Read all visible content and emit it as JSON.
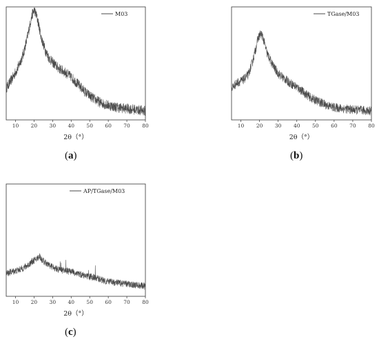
{
  "chart_data": [
    {
      "type": "line",
      "panel_label": "a",
      "xlabel": "2θ（°）",
      "xlim": [
        5,
        80
      ],
      "xticks": [
        10,
        20,
        30,
        40,
        50,
        60,
        70,
        80
      ],
      "ylabel": "",
      "yticks_shown": false,
      "legend": "top-right",
      "series": [
        {
          "name": "M03",
          "color": "#4a4a4a",
          "noise": 0.045,
          "x": [
            5,
            8,
            11,
            14,
            16,
            18,
            19,
            20,
            21,
            22,
            23,
            24,
            26,
            28,
            30,
            33,
            36,
            40,
            44,
            48,
            52,
            56,
            60,
            65,
            70,
            75,
            80
          ],
          "y": [
            0.28,
            0.36,
            0.45,
            0.57,
            0.7,
            0.86,
            0.93,
            0.97,
            0.94,
            0.88,
            0.8,
            0.72,
            0.62,
            0.55,
            0.51,
            0.46,
            0.43,
            0.38,
            0.31,
            0.24,
            0.19,
            0.15,
            0.13,
            0.11,
            0.1,
            0.09,
            0.08
          ]
        }
      ]
    },
    {
      "type": "line",
      "panel_label": "b",
      "xlabel": "2θ（°）",
      "xlim": [
        5,
        80
      ],
      "xticks": [
        10,
        20,
        30,
        40,
        50,
        60,
        70,
        80
      ],
      "ylabel": "",
      "yticks_shown": false,
      "legend": "top-right",
      "series": [
        {
          "name": "TGase/M03",
          "color": "#4a4a4a",
          "noise": 0.04,
          "x": [
            5,
            8,
            11,
            14,
            16,
            18,
            19,
            20,
            21,
            22,
            23,
            24,
            26,
            28,
            30,
            33,
            36,
            40,
            44,
            48,
            52,
            56,
            60,
            65,
            70,
            75,
            80
          ],
          "y": [
            0.28,
            0.33,
            0.35,
            0.4,
            0.5,
            0.63,
            0.71,
            0.75,
            0.76,
            0.72,
            0.66,
            0.59,
            0.52,
            0.46,
            0.41,
            0.37,
            0.33,
            0.29,
            0.24,
            0.19,
            0.16,
            0.13,
            0.11,
            0.1,
            0.09,
            0.085,
            0.08
          ]
        }
      ]
    },
    {
      "type": "line",
      "panel_label": "c",
      "xlabel": "2θ（°）",
      "xlim": [
        5,
        80
      ],
      "xticks": [
        10,
        20,
        30,
        40,
        50,
        60,
        70,
        80
      ],
      "ylabel": "",
      "yticks_shown": false,
      "legend": "top-right",
      "series": [
        {
          "name": "AP/TGase/M03",
          "color": "#4a4a4a",
          "noise": 0.03,
          "x": [
            5,
            8,
            11,
            14,
            17,
            19,
            21,
            22,
            23,
            24,
            26,
            28,
            30,
            33,
            36,
            40,
            44,
            48,
            52,
            56,
            60,
            65,
            70,
            75,
            80
          ],
          "y": [
            0.2,
            0.22,
            0.23,
            0.25,
            0.28,
            0.31,
            0.33,
            0.34,
            0.36,
            0.33,
            0.3,
            0.28,
            0.26,
            0.24,
            0.23,
            0.22,
            0.2,
            0.18,
            0.17,
            0.15,
            0.13,
            0.12,
            0.11,
            0.1,
            0.09
          ]
        }
      ]
    }
  ]
}
